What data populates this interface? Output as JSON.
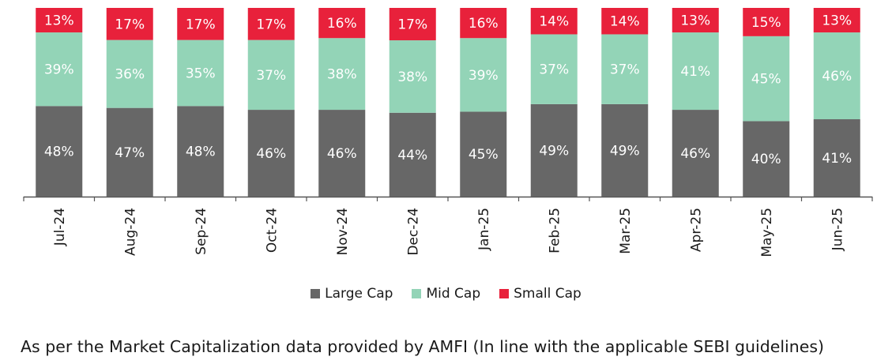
{
  "chart_data": {
    "type": "bar",
    "stacked": true,
    "categories": [
      "Jul-24",
      "Aug-24",
      "Sep-24",
      "Oct-24",
      "Nov-24",
      "Dec-24",
      "Jan-25",
      "Feb-25",
      "Mar-25",
      "Apr-25",
      "May-25",
      "Jun-25"
    ],
    "series": [
      {
        "name": "Large Cap",
        "color": "#676767",
        "values": [
          48,
          47,
          48,
          46,
          46,
          44,
          45,
          49,
          49,
          46,
          40,
          41
        ]
      },
      {
        "name": "Mid Cap",
        "color": "#93d4b7",
        "values": [
          39,
          36,
          35,
          37,
          38,
          38,
          39,
          37,
          37,
          41,
          45,
          46
        ]
      },
      {
        "name": "Small Cap",
        "color": "#e8213b",
        "values": [
          13,
          17,
          17,
          17,
          16,
          17,
          16,
          14,
          14,
          13,
          15,
          13
        ]
      }
    ],
    "value_suffix": "%",
    "legend_position": "bottom",
    "grid": false
  },
  "footnote": "As per the Market Capitalization data provided by AMFI (In line with the applicable SEBI guidelines)"
}
